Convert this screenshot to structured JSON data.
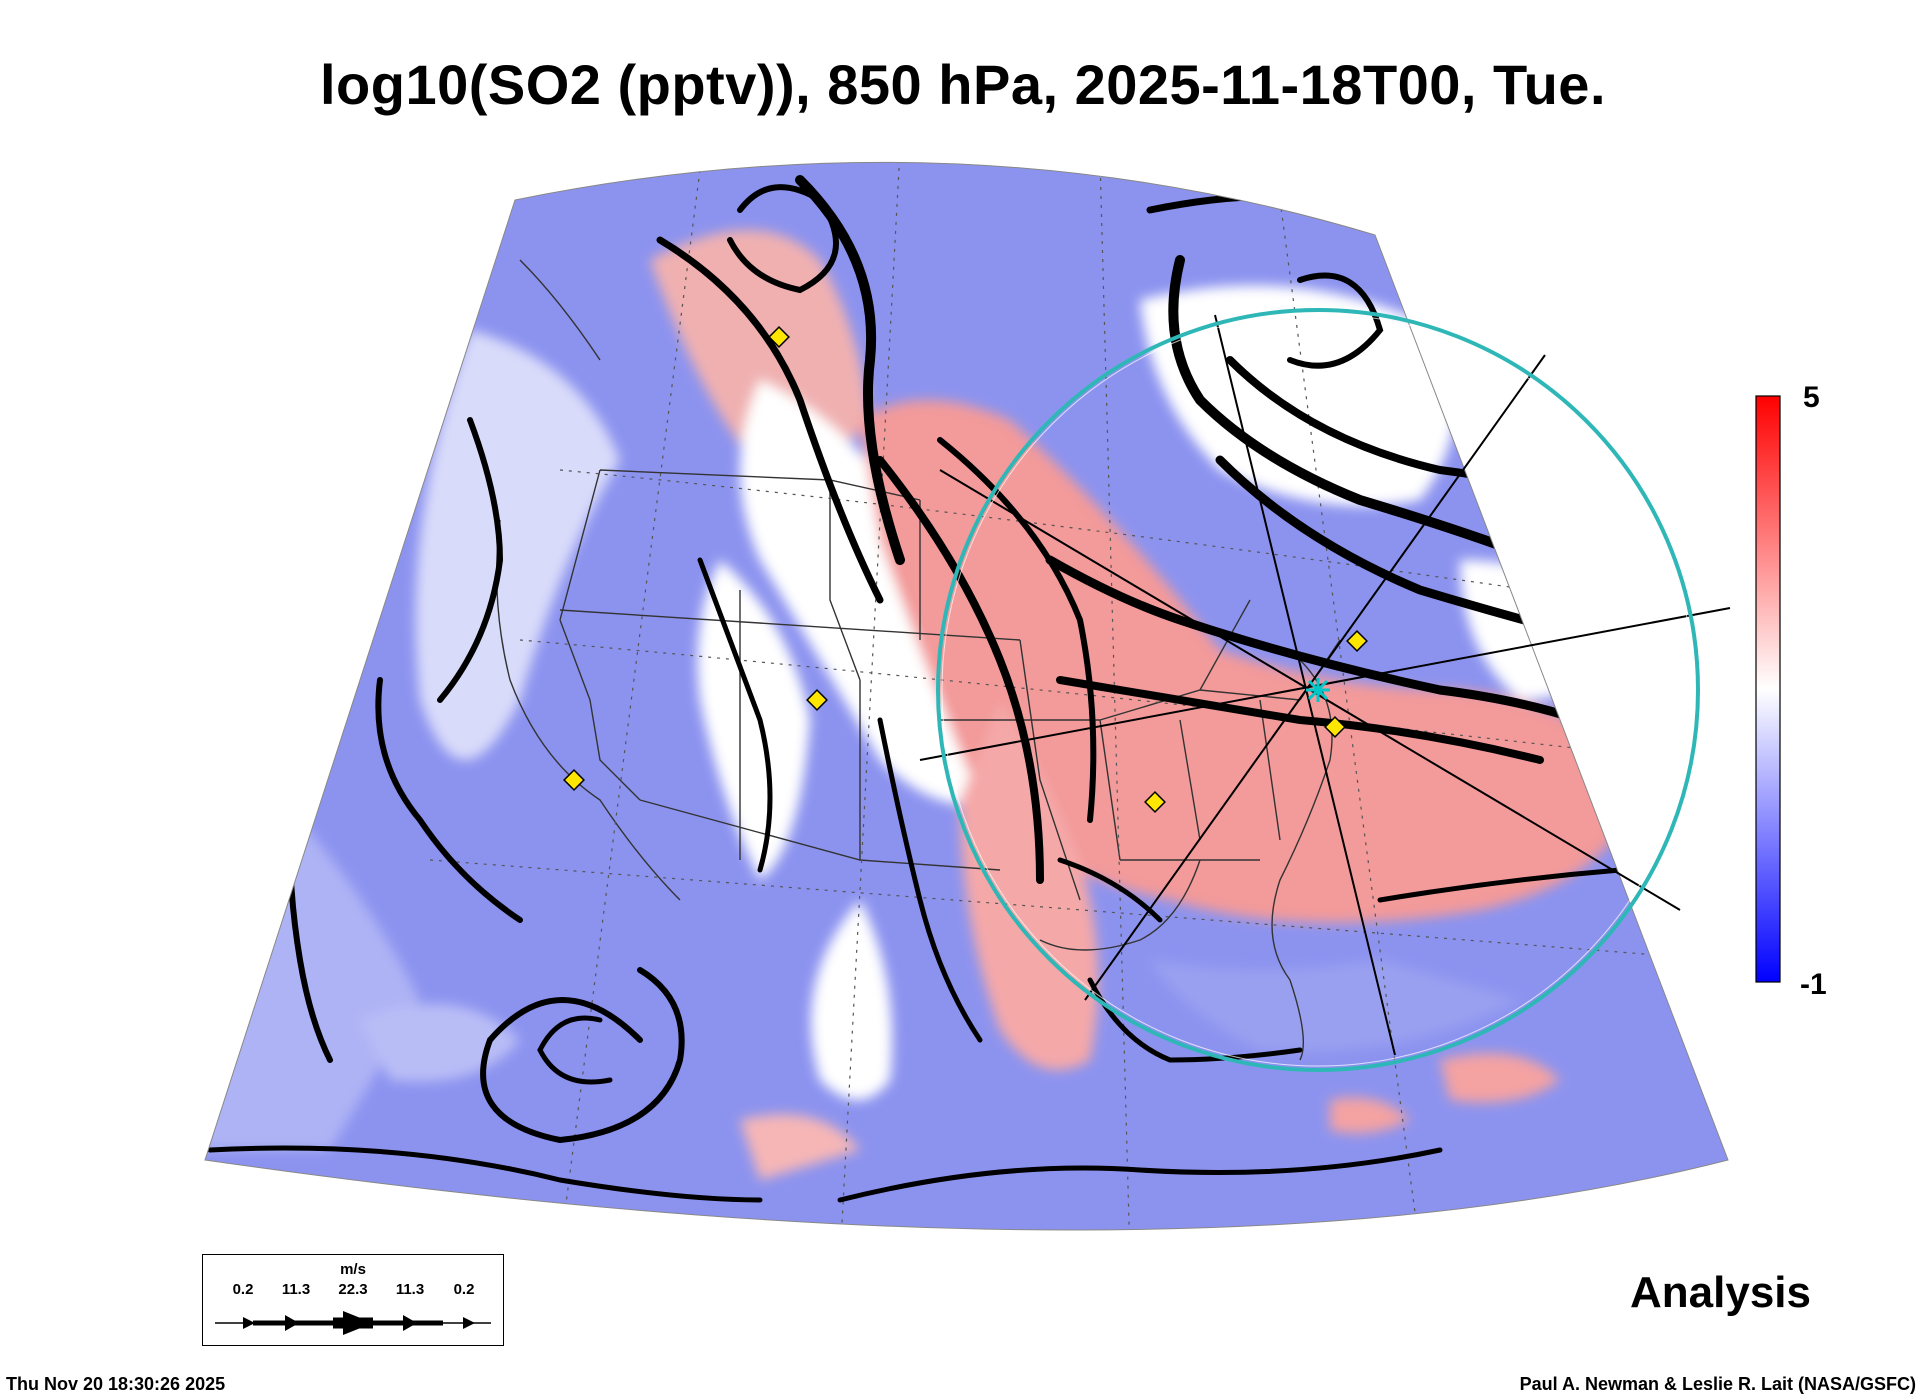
{
  "title": "log10(SO2 (pptv)), 850 hPa, 2025-11-18T00, Tue.",
  "colorbar": {
    "max_label": "5",
    "min_label": "-1",
    "colors": {
      "high": "#ff0000",
      "mid": "#ffffff",
      "low": "#0000ff"
    }
  },
  "wind_key": {
    "units": "m/s",
    "values": [
      "0.2",
      "11.3",
      "22.3",
      "11.3",
      "0.2"
    ]
  },
  "analysis_label": "Analysis",
  "timestamp": "Thu Nov 20 18:30:26 2025",
  "credit": "Paul A. Newman & Leslie R. Lait (NASA/GSFC)",
  "colors": {
    "target_circle": "#2fb7b7",
    "marker": "#ffe600",
    "streamline": "#000000"
  }
}
